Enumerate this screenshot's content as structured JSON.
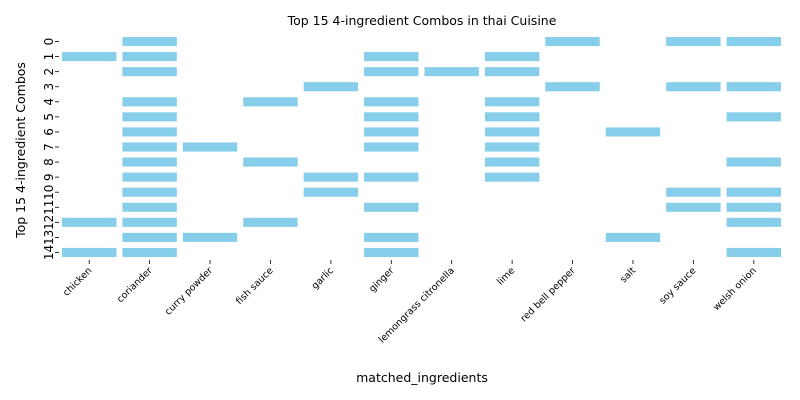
{
  "chart_data": {
    "type": "heatmap",
    "title": "Top 15 4-ingredient Combos in thai Cuisine",
    "xlabel": "matched_ingredients",
    "ylabel": "Top 15 4-ingredient Combos",
    "categories": [
      "chicken",
      "coriander",
      "curry powder",
      "fish sauce",
      "garlic",
      "ginger",
      "lemongrass citronella",
      "lime",
      "red bell pepper",
      "salt",
      "soy sauce",
      "welsh onion"
    ],
    "rows": [
      "0",
      "1",
      "2",
      "3",
      "4",
      "5",
      "6",
      "7",
      "8",
      "9",
      "10",
      "11",
      "12",
      "13",
      "14"
    ],
    "matrix": [
      [
        0,
        1,
        0,
        0,
        0,
        0,
        0,
        0,
        1,
        0,
        1,
        1
      ],
      [
        1,
        1,
        0,
        0,
        0,
        1,
        0,
        1,
        0,
        0,
        0,
        0
      ],
      [
        0,
        1,
        0,
        0,
        0,
        1,
        1,
        1,
        0,
        0,
        0,
        0
      ],
      [
        0,
        0,
        0,
        0,
        1,
        0,
        0,
        0,
        1,
        0,
        1,
        1
      ],
      [
        0,
        1,
        0,
        1,
        0,
        1,
        0,
        1,
        0,
        0,
        0,
        0
      ],
      [
        0,
        1,
        0,
        0,
        0,
        1,
        0,
        1,
        0,
        0,
        0,
        1
      ],
      [
        0,
        1,
        0,
        0,
        0,
        1,
        0,
        1,
        0,
        1,
        0,
        0
      ],
      [
        0,
        1,
        1,
        0,
        0,
        1,
        0,
        1,
        0,
        0,
        0,
        0
      ],
      [
        0,
        1,
        0,
        1,
        0,
        0,
        0,
        1,
        0,
        0,
        0,
        1
      ],
      [
        0,
        1,
        0,
        0,
        1,
        1,
        0,
        1,
        0,
        0,
        0,
        0
      ],
      [
        0,
        1,
        0,
        0,
        1,
        0,
        0,
        0,
        0,
        0,
        1,
        1
      ],
      [
        0,
        1,
        0,
        0,
        0,
        1,
        0,
        0,
        0,
        0,
        1,
        1
      ],
      [
        1,
        1,
        0,
        1,
        0,
        0,
        0,
        0,
        0,
        0,
        0,
        1
      ],
      [
        0,
        1,
        1,
        0,
        0,
        1,
        0,
        0,
        0,
        1,
        0,
        0
      ],
      [
        1,
        1,
        0,
        0,
        0,
        1,
        0,
        0,
        0,
        0,
        0,
        1
      ]
    ],
    "cell_color": "#87ceeb",
    "background_color": "#ffffff"
  }
}
